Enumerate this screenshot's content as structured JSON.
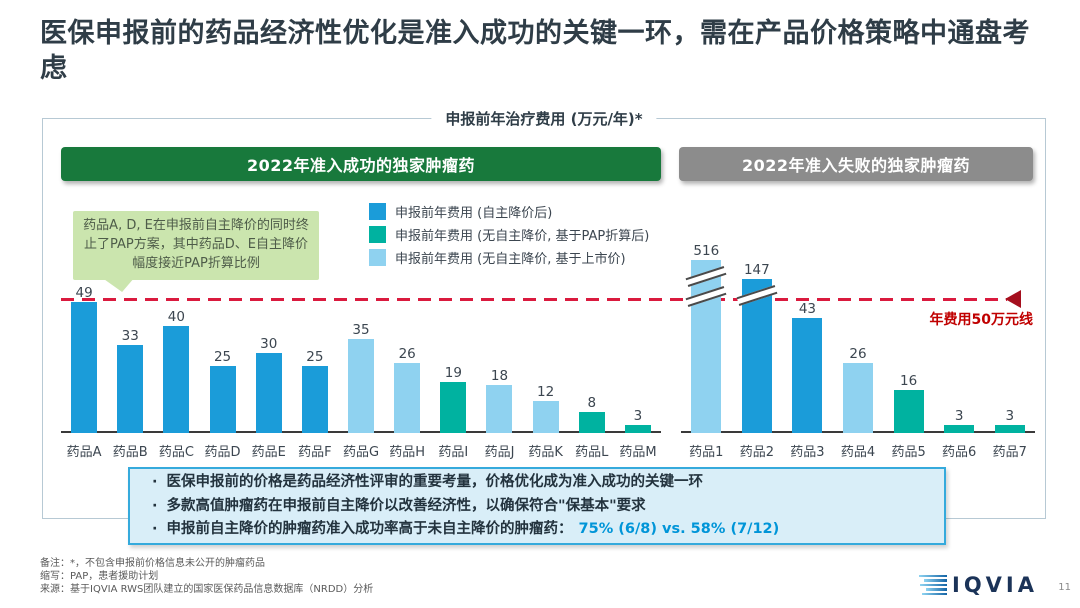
{
  "slide": {
    "title": "医保申报前的药品经济性优化是准入成功的关键一环，需在产品价格策略中通盘考虑",
    "page_number": "11",
    "logo_text": "IQVIA"
  },
  "figure": {
    "title": "申报前年治疗费用 (万元/年)*",
    "annotation": "药品A, D, E在申报前自主降价的同时终止了PAP方案，其中药品D、E自主降价幅度接近PAP折算比例",
    "reference_line": {
      "value": 50,
      "label": "年费用50万元线",
      "color": "#DA1A3E"
    }
  },
  "palette": {
    "blue": "#1B9CD9",
    "teal": "#00B2A0",
    "light": "#8FD2F0"
  },
  "legend": {
    "items": [
      {
        "color": "#1B9CD9",
        "label": "申报前年费用 (自主降价后)"
      },
      {
        "color": "#00B2A0",
        "label": "申报前年费用 (无自主降价, 基于PAP折算后)"
      },
      {
        "color": "#8FD2F0",
        "label": "申报前年费用 (无自主降价, 基于上市价)"
      }
    ]
  },
  "chart_data": [
    {
      "type": "bar",
      "title": "2022年准入成功的独家肿瘤药",
      "header_color": "#18793C",
      "categories": [
        "药品A",
        "药品B",
        "药品C",
        "药品D",
        "药品E",
        "药品F",
        "药品G",
        "药品H",
        "药品I",
        "药品J",
        "药品K",
        "药品L",
        "药品M"
      ],
      "values": [
        49,
        33,
        40,
        25,
        30,
        25,
        35,
        26,
        19,
        18,
        12,
        8,
        3
      ],
      "colors": [
        "blue",
        "blue",
        "blue",
        "blue",
        "blue",
        "blue",
        "light",
        "light",
        "teal",
        "light",
        "light",
        "teal",
        "teal"
      ],
      "ylabel": "申报前年治疗费用 (万元/年)",
      "reference_line_value": 50,
      "grid": false
    },
    {
      "type": "bar",
      "title": "2022年准入失败的独家肿瘤药",
      "header_color": "#8C8C8C",
      "categories": [
        "药品1",
        "药品2",
        "药品3",
        "药品4",
        "药品5",
        "药品6",
        "药品7"
      ],
      "values": [
        516,
        147,
        43,
        26,
        16,
        3,
        3
      ],
      "colors": [
        "light",
        "blue",
        "blue",
        "light",
        "teal",
        "teal",
        "teal"
      ],
      "ylabel": "申报前年治疗费用 (万元/年)",
      "reference_line_value": 50,
      "broken_bars": [
        {
          "index": 0,
          "breaks": 2
        },
        {
          "index": 1,
          "breaks": 1
        }
      ],
      "grid": false
    }
  ],
  "callout": {
    "bullets": [
      "医保申报前的价格是药品经济性评审的重要考量，价格优化成为准入成功的关键一环",
      "多款高值肿瘤药在申报前自主降价以改善经济性，以确保符合\"保基本\"要求",
      "申报前自主降价的肿瘤药准入成功率高于未自主降价的肿瘤药："
    ],
    "highlight": "75% (6/8) vs. 58% (7/12)"
  },
  "footnotes": [
    "备注：*，不包含申报前价格信息未公开的肿瘤药品",
    "缩写：PAP，患者援助计划",
    "来源：基于IQVIA RWS团队建立的国家医保药品信息数据库（NRDD）分析"
  ]
}
